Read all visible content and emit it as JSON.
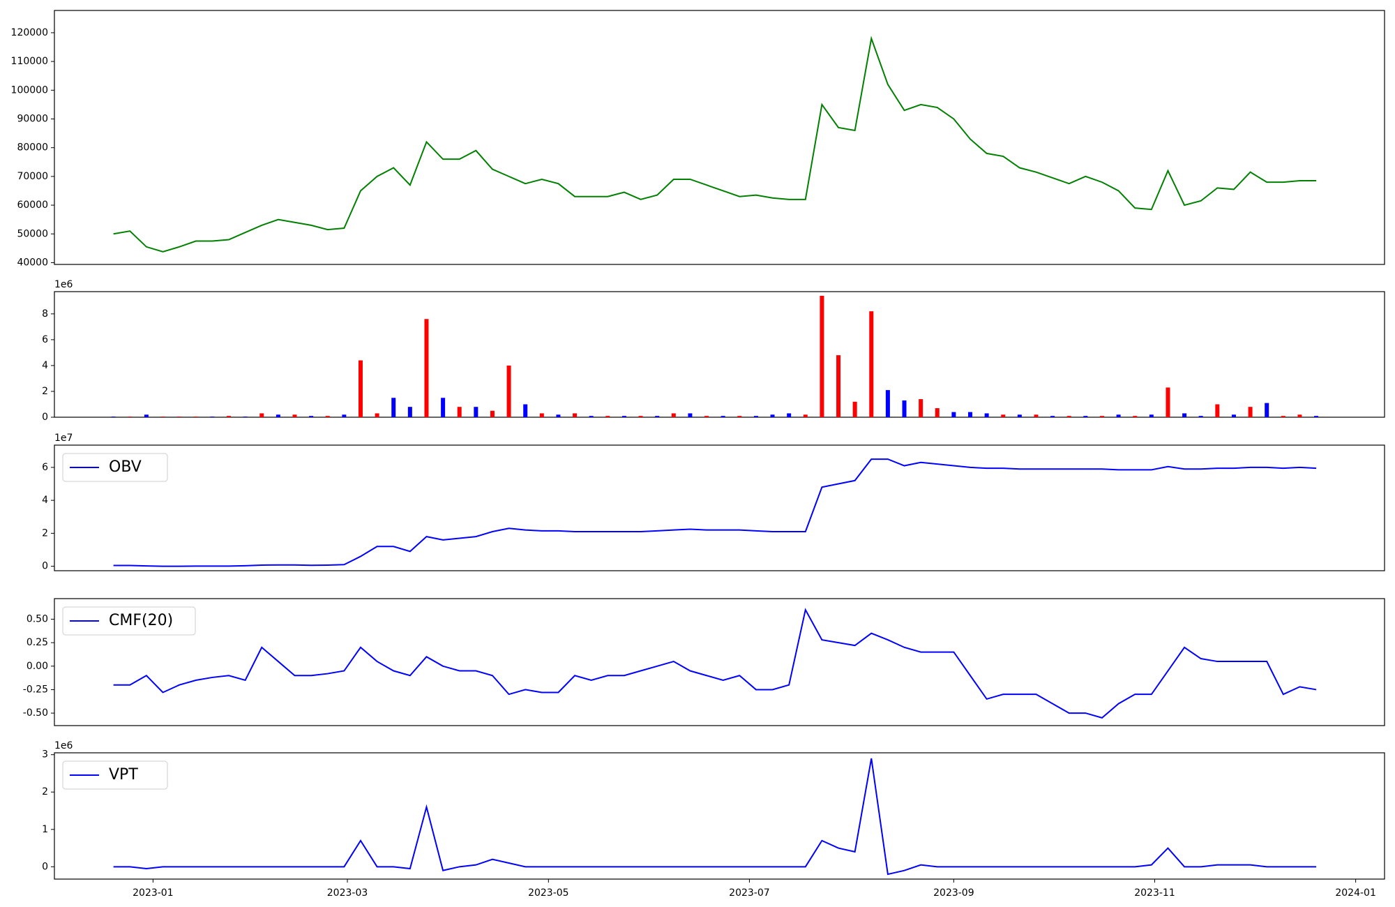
{
  "chart_data": [
    {
      "type": "line",
      "color": "#008000",
      "x": [
        2022.9671,
        2022.9808,
        2022.9945,
        2023.0082,
        2023.0219,
        2023.0356,
        2023.0493,
        2023.063,
        2023.0767,
        2023.0904,
        2023.1041,
        2023.1178,
        2023.1315,
        2023.1452,
        2023.1589,
        2023.1726,
        2023.1863,
        2023.2,
        2023.2137,
        2023.2274,
        2023.2411,
        2023.2548,
        2023.2685,
        2023.2822,
        2023.2959,
        2023.3096,
        2023.3233,
        2023.337,
        2023.3507,
        2023.3644,
        2023.3781,
        2023.3918,
        2023.4055,
        2023.4192,
        2023.4329,
        2023.4466,
        2023.4603,
        2023.474,
        2023.4877,
        2023.5014,
        2023.5151,
        2023.5288,
        2023.5425,
        2023.5562,
        2023.5699,
        2023.5836,
        2023.5973,
        2023.611,
        2023.6247,
        2023.6384,
        2023.6521,
        2023.6658,
        2023.6795,
        2023.6932,
        2023.7069,
        2023.7206,
        2023.7343,
        2023.748,
        2023.7617,
        2023.7754,
        2023.7891,
        2023.8028,
        2023.8165,
        2023.8302,
        2023.8439,
        2023.8576,
        2023.8713,
        2023.885,
        2023.8987,
        2023.9124,
        2023.9261,
        2023.9398,
        2023.9535,
        2023.9672
      ],
      "values": [
        50000,
        51000,
        45500,
        43800,
        45500,
        47500,
        47500,
        48000,
        50500,
        53000,
        55000,
        54000,
        53000,
        51500,
        52000,
        65000,
        70000,
        73000,
        67000,
        82000,
        76000,
        76000,
        79000,
        72500,
        70000,
        67500,
        69000,
        67500,
        63000,
        63000,
        63000,
        64500,
        62000,
        63500,
        69000,
        69000,
        67000,
        65000,
        63000,
        63500,
        62500,
        62000,
        62000,
        95000,
        87000,
        86000,
        118000,
        102000,
        93000,
        95000,
        94000,
        90000,
        83000,
        78000,
        77000,
        73000,
        71500,
        69500,
        67500,
        70000,
        68000,
        65000,
        59000,
        58500,
        72000,
        60000,
        61500,
        66000,
        65500,
        71500,
        68000,
        68000,
        68500,
        68500
      ],
      "xlim": [
        2022.918,
        2024.024
      ],
      "ylim": [
        39380,
        127750
      ],
      "yticks": [
        40000,
        50000,
        60000,
        70000,
        80000,
        90000,
        100000,
        110000,
        120000
      ]
    },
    {
      "type": "bar",
      "y_offset_label": "1e6",
      "x": [
        2022.9671,
        2022.9808,
        2022.9945,
        2023.0082,
        2023.0219,
        2023.0356,
        2023.0493,
        2023.063,
        2023.0767,
        2023.0904,
        2023.1041,
        2023.1178,
        2023.1315,
        2023.1452,
        2023.1589,
        2023.1726,
        2023.1863,
        2023.2,
        2023.2137,
        2023.2274,
        2023.2411,
        2023.2548,
        2023.2685,
        2023.2822,
        2023.2959,
        2023.3096,
        2023.3233,
        2023.337,
        2023.3507,
        2023.3644,
        2023.3781,
        2023.3918,
        2023.4055,
        2023.4192,
        2023.4329,
        2023.4466,
        2023.4603,
        2023.474,
        2023.4877,
        2023.5014,
        2023.5151,
        2023.5288,
        2023.5425,
        2023.5562,
        2023.5699,
        2023.5836,
        2023.5973,
        2023.611,
        2023.6247,
        2023.6384,
        2023.6521,
        2023.6658,
        2023.6795,
        2023.6932,
        2023.7069,
        2023.7206,
        2023.7343,
        2023.748,
        2023.7617,
        2023.7754,
        2023.7891,
        2023.8028,
        2023.8165,
        2023.8302,
        2023.8439,
        2023.8576,
        2023.8713,
        2023.885,
        2023.8987,
        2023.9124,
        2023.9261,
        2023.9398,
        2023.9535,
        2023.9672
      ],
      "values": [
        0.05,
        0.05,
        0.2,
        0.05,
        0.05,
        0.05,
        0.05,
        0.1,
        0.05,
        0.3,
        0.2,
        0.2,
        0.1,
        0.1,
        0.2,
        4.4,
        0.3,
        1.5,
        0.8,
        7.6,
        1.5,
        0.8,
        0.8,
        0.5,
        4.0,
        1.0,
        0.3,
        0.2,
        0.3,
        0.1,
        0.1,
        0.1,
        0.1,
        0.1,
        0.3,
        0.3,
        0.1,
        0.1,
        0.1,
        0.1,
        0.2,
        0.3,
        0.2,
        9.4,
        4.8,
        1.2,
        8.2,
        2.1,
        1.3,
        1.4,
        0.7,
        0.4,
        0.4,
        0.3,
        0.2,
        0.2,
        0.2,
        0.1,
        0.1,
        0.1,
        0.1,
        0.2,
        0.1,
        0.2,
        2.3,
        0.3,
        0.1,
        1.0,
        0.2,
        0.8,
        1.1,
        0.1,
        0.2,
        0.1
      ],
      "colors": [
        "blue",
        "red",
        "blue",
        "red",
        "red",
        "red",
        "blue",
        "red",
        "blue",
        "red",
        "blue",
        "red",
        "blue",
        "red",
        "blue",
        "red",
        "red",
        "blue",
        "blue",
        "red",
        "blue",
        "red",
        "blue",
        "red",
        "red",
        "blue",
        "red",
        "blue",
        "red",
        "blue",
        "red",
        "blue",
        "red",
        "blue",
        "red",
        "blue",
        "red",
        "blue",
        "red",
        "blue",
        "blue",
        "blue",
        "red",
        "red",
        "red",
        "red",
        "red",
        "blue",
        "blue",
        "red",
        "red",
        "blue",
        "blue",
        "blue",
        "red",
        "blue",
        "red",
        "blue",
        "red",
        "blue",
        "red",
        "blue",
        "red",
        "blue",
        "red",
        "blue",
        "blue",
        "red",
        "blue",
        "red",
        "blue",
        "red",
        "red",
        "blue"
      ],
      "xlim": [
        2022.918,
        2024.024
      ],
      "ylim": [
        0,
        9.72
      ],
      "yticks": [
        0,
        2,
        4,
        6,
        8
      ]
    },
    {
      "type": "line",
      "y_offset_label": "1e7",
      "legend": "upper left",
      "x": [
        2022.9671,
        2022.9808,
        2022.9945,
        2023.0082,
        2023.0219,
        2023.0356,
        2023.0493,
        2023.063,
        2023.0767,
        2023.0904,
        2023.1041,
        2023.1178,
        2023.1315,
        2023.1452,
        2023.1589,
        2023.1726,
        2023.1863,
        2023.2,
        2023.2137,
        2023.2274,
        2023.2411,
        2023.2548,
        2023.2685,
        2023.2822,
        2023.2959,
        2023.3096,
        2023.3233,
        2023.337,
        2023.3507,
        2023.3644,
        2023.3781,
        2023.3918,
        2023.4055,
        2023.4192,
        2023.4329,
        2023.4466,
        2023.4603,
        2023.474,
        2023.4877,
        2023.5014,
        2023.5151,
        2023.5288,
        2023.5425,
        2023.5562,
        2023.5699,
        2023.5836,
        2023.5973,
        2023.611,
        2023.6247,
        2023.6384,
        2023.6521,
        2023.6658,
        2023.6795,
        2023.6932,
        2023.7069,
        2023.7206,
        2023.7343,
        2023.748,
        2023.7617,
        2023.7754,
        2023.7891,
        2023.8028,
        2023.8165,
        2023.8302,
        2023.8439,
        2023.8576,
        2023.8713,
        2023.885,
        2023.8987,
        2023.9124,
        2023.9261,
        2023.9398,
        2023.9535,
        2023.9672
      ],
      "series": [
        {
          "name": "OBV",
          "color": "blue",
          "values": [
            0.05,
            0.05,
            0.02,
            0.0,
            0.0,
            0.01,
            0.01,
            0.01,
            0.03,
            0.07,
            0.08,
            0.08,
            0.06,
            0.07,
            0.1,
            0.6,
            1.2,
            1.2,
            0.9,
            1.8,
            1.6,
            1.7,
            1.8,
            2.1,
            2.3,
            2.2,
            2.15,
            2.15,
            2.1,
            2.1,
            2.1,
            2.1,
            2.1,
            2.15,
            2.2,
            2.25,
            2.2,
            2.2,
            2.2,
            2.15,
            2.1,
            2.1,
            2.1,
            4.8,
            5.0,
            5.2,
            6.5,
            6.5,
            6.1,
            6.3,
            6.2,
            6.1,
            6.0,
            5.95,
            5.95,
            5.9,
            5.9,
            5.9,
            5.9,
            5.9,
            5.9,
            5.85,
            5.85,
            5.85,
            6.05,
            5.9,
            5.9,
            5.95,
            5.95,
            6.0,
            6.0,
            5.95,
            6.0,
            5.95
          ]
        }
      ],
      "xlim": [
        2022.918,
        2024.024
      ],
      "ylim": [
        -0.27,
        7.35
      ],
      "yticks": [
        0,
        2,
        4,
        6
      ]
    },
    {
      "type": "line",
      "legend": "upper left",
      "x": [
        2022.9671,
        2022.9808,
        2022.9945,
        2023.0082,
        2023.0219,
        2023.0356,
        2023.0493,
        2023.063,
        2023.0767,
        2023.0904,
        2023.1041,
        2023.1178,
        2023.1315,
        2023.1452,
        2023.1589,
        2023.1726,
        2023.1863,
        2023.2,
        2023.2137,
        2023.2274,
        2023.2411,
        2023.2548,
        2023.2685,
        2023.2822,
        2023.2959,
        2023.3096,
        2023.3233,
        2023.337,
        2023.3507,
        2023.3644,
        2023.3781,
        2023.3918,
        2023.4055,
        2023.4192,
        2023.4329,
        2023.4466,
        2023.4603,
        2023.474,
        2023.4877,
        2023.5014,
        2023.5151,
        2023.5288,
        2023.5425,
        2023.5562,
        2023.5699,
        2023.5836,
        2023.5973,
        2023.611,
        2023.6247,
        2023.6384,
        2023.6521,
        2023.6658,
        2023.6795,
        2023.6932,
        2023.7069,
        2023.7206,
        2023.7343,
        2023.748,
        2023.7617,
        2023.7754,
        2023.7891,
        2023.8028,
        2023.8165,
        2023.8302,
        2023.8439,
        2023.8576,
        2023.8713,
        2023.885,
        2023.8987,
        2023.9124,
        2023.9261,
        2023.9398,
        2023.9535,
        2023.9672
      ],
      "series": [
        {
          "name": "CMF(20)",
          "color": "blue",
          "values": [
            -0.2,
            -0.2,
            -0.1,
            -0.28,
            -0.2,
            -0.15,
            -0.12,
            -0.1,
            -0.15,
            0.2,
            0.05,
            -0.1,
            -0.1,
            -0.08,
            -0.05,
            0.2,
            0.05,
            -0.05,
            -0.1,
            0.1,
            0.0,
            -0.05,
            -0.05,
            -0.1,
            -0.3,
            -0.25,
            -0.28,
            -0.28,
            -0.1,
            -0.15,
            -0.1,
            -0.1,
            -0.05,
            0.0,
            0.05,
            -0.05,
            -0.1,
            -0.15,
            -0.1,
            -0.25,
            -0.25,
            -0.2,
            0.6,
            0.28,
            0.25,
            0.22,
            0.35,
            0.28,
            0.2,
            0.15,
            0.15,
            0.15,
            -0.1,
            -0.35,
            -0.3,
            -0.3,
            -0.3,
            -0.4,
            -0.5,
            -0.5,
            -0.55,
            -0.4,
            -0.3,
            -0.3,
            -0.05,
            0.2,
            0.08,
            0.05,
            0.05,
            0.05,
            0.05,
            -0.3,
            -0.22,
            -0.25
          ]
        }
      ],
      "xlim": [
        2022.918,
        2024.024
      ],
      "ylim": [
        -0.633,
        0.719
      ],
      "yticks": [
        {
          "value": -0.5,
          "label": "-0.50"
        },
        {
          "value": -0.25,
          "label": "-0.25"
        },
        {
          "value": 0,
          "label": "0.00"
        },
        {
          "value": 0.25,
          "label": "0.25"
        },
        {
          "value": 0.5,
          "label": "0.50"
        }
      ]
    },
    {
      "type": "line",
      "y_offset_label": "1e6",
      "legend": "upper left",
      "x": [
        2022.9671,
        2022.9808,
        2022.9945,
        2023.0082,
        2023.0219,
        2023.0356,
        2023.0493,
        2023.063,
        2023.0767,
        2023.0904,
        2023.1041,
        2023.1178,
        2023.1315,
        2023.1452,
        2023.1589,
        2023.1726,
        2023.1863,
        2023.2,
        2023.2137,
        2023.2274,
        2023.2411,
        2023.2548,
        2023.2685,
        2023.2822,
        2023.2959,
        2023.3096,
        2023.3233,
        2023.337,
        2023.3507,
        2023.3644,
        2023.3781,
        2023.3918,
        2023.4055,
        2023.4192,
        2023.4329,
        2023.4466,
        2023.4603,
        2023.474,
        2023.4877,
        2023.5014,
        2023.5151,
        2023.5288,
        2023.5425,
        2023.5562,
        2023.5699,
        2023.5836,
        2023.5973,
        2023.611,
        2023.6247,
        2023.6384,
        2023.6521,
        2023.6658,
        2023.6795,
        2023.6932,
        2023.7069,
        2023.7206,
        2023.7343,
        2023.748,
        2023.7617,
        2023.7754,
        2023.7891,
        2023.8028,
        2023.8165,
        2023.8302,
        2023.8439,
        2023.8576,
        2023.8713,
        2023.885,
        2023.8987,
        2023.9124,
        2023.9261,
        2023.9398,
        2023.9535,
        2023.9672
      ],
      "series": [
        {
          "name": "VPT",
          "color": "blue",
          "values": [
            0.0,
            0.0,
            -0.05,
            0.0,
            0.0,
            0.0,
            0.0,
            0.0,
            0.0,
            0.0,
            0.0,
            0.0,
            0.0,
            0.0,
            0.0,
            0.7,
            0.0,
            0.0,
            -0.05,
            1.6,
            -0.1,
            0.0,
            0.05,
            0.2,
            0.1,
            0.0,
            0.0,
            0.0,
            0.0,
            0.0,
            0.0,
            0.0,
            0.0,
            0.0,
            0.0,
            0.0,
            0.0,
            0.0,
            0.0,
            0.0,
            0.0,
            0.0,
            0.0,
            0.7,
            0.5,
            0.4,
            2.9,
            -0.2,
            -0.1,
            0.05,
            0.0,
            0.0,
            0.0,
            0.0,
            0.0,
            0.0,
            0.0,
            0.0,
            0.0,
            0.0,
            0.0,
            0.0,
            0.0,
            0.05,
            0.5,
            0.0,
            0.0,
            0.05,
            0.05,
            0.05,
            0.0,
            0.0,
            0.0,
            0.0
          ]
        }
      ],
      "xlim": [
        2022.918,
        2024.024
      ],
      "ylim": [
        -0.33,
        3.05
      ],
      "yticks": [
        0,
        1,
        2,
        3
      ],
      "xticks": [
        {
          "value": 2023.0,
          "label": "2023-01"
        },
        {
          "value": 2023.1616,
          "label": "2023-03"
        },
        {
          "value": 2023.3288,
          "label": "2023-05"
        },
        {
          "value": 2023.4959,
          "label": "2023-07"
        },
        {
          "value": 2023.6658,
          "label": "2023-09"
        },
        {
          "value": 2023.8329,
          "label": "2023-11"
        },
        {
          "value": 2024.0,
          "label": "2024-01"
        }
      ]
    }
  ]
}
